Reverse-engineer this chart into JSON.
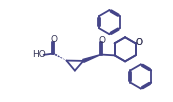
{
  "line_color": "#444488",
  "line_width": 1.3,
  "figsize": [
    1.73,
    1.02
  ],
  "dpi": 100,
  "xlim": [
    0,
    10
  ],
  "ylim": [
    0,
    6
  ]
}
